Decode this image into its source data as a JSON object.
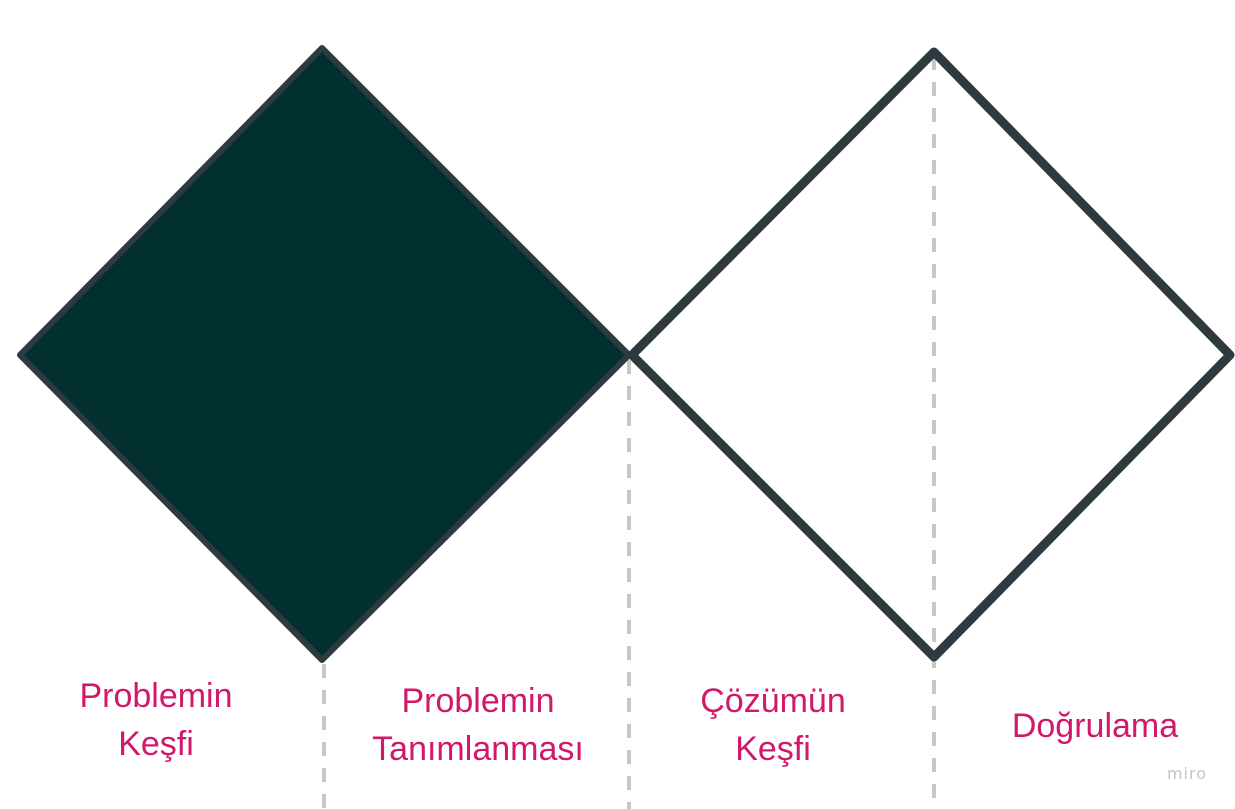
{
  "colors": {
    "filled_diamond": "#02302f",
    "outline": "#2e3a40",
    "divider": "#c8c8c8",
    "label_text": "#d1186b",
    "watermark": "#c4c4c4",
    "background": "#ffffff"
  },
  "phases": [
    {
      "line1": "Problemin",
      "line2": "Keşfi"
    },
    {
      "line1": "Problemin",
      "line2": "Tanımlanması"
    },
    {
      "line1": "Çözümün",
      "line2": "Keşfi"
    },
    {
      "line1": "Doğrulama",
      "line2": ""
    }
  ],
  "watermark": "miro"
}
